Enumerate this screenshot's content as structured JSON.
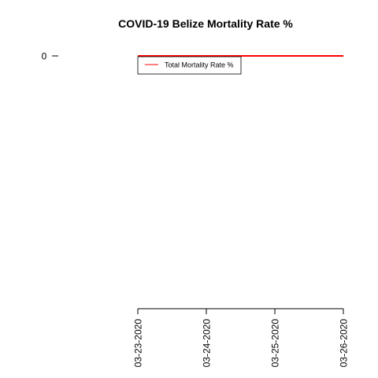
{
  "chart_data": {
    "type": "line",
    "title": "COVID-19 Belize Mortality Rate %",
    "xlabel": "",
    "ylabel": "",
    "x": [
      "03-23-2020",
      "03-24-2020",
      "03-25-2020",
      "03-26-2020"
    ],
    "series": [
      {
        "name": "Total Mortality Rate %",
        "color": "#ff0000",
        "values": [
          0,
          0,
          0,
          0
        ]
      }
    ],
    "y_ticks": [
      0
    ],
    "legend_position": "top-left",
    "grid": false
  }
}
